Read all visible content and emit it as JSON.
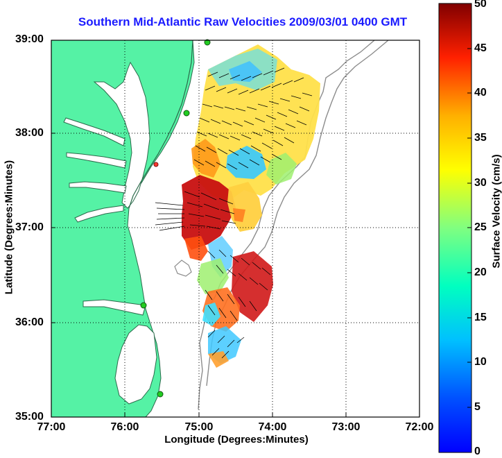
{
  "title": "Southern Mid-Atlantic Raw Velocities 2009/03/01 0400 GMT",
  "axes": {
    "xlabel": "Longitude (Degrees:Minutes)",
    "ylabel": "Latitude (Degrees:Minutes)",
    "xticks": [
      "77:00",
      "76:00",
      "75:00",
      "74:00",
      "73:00",
      "72:00"
    ],
    "yticks": [
      "39:00",
      "38:00",
      "37:00",
      "36:00",
      "35:00"
    ]
  },
  "colorbar": {
    "label": "Surface Velocity (cm/s)",
    "ticks": [
      "50",
      "45",
      "40",
      "35",
      "30",
      "25",
      "20",
      "15",
      "10",
      "5",
      "0"
    ],
    "range": [
      0,
      50
    ]
  },
  "colors": {
    "land": "#55f2a5",
    "water": "#ffffff",
    "title": "#1a1aff",
    "station": "#22cc22",
    "station_alt": "#ff3b30"
  }
}
